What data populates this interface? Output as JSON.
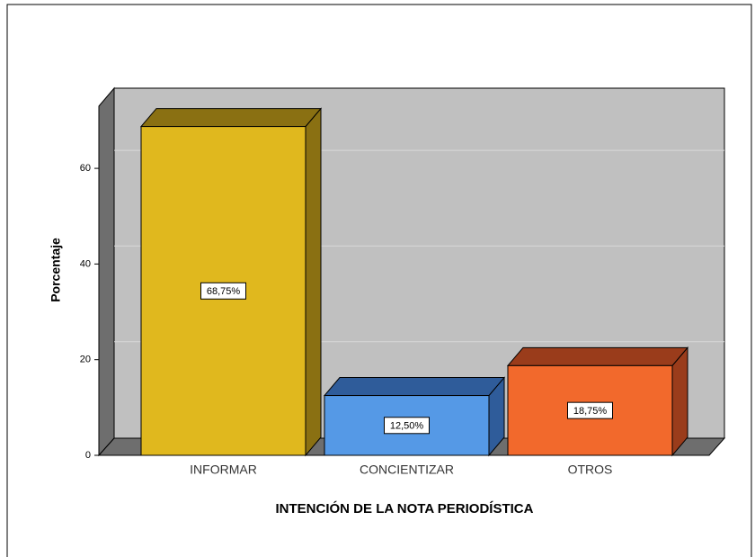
{
  "chart_data": {
    "type": "bar3d",
    "categories": [
      "INFORMAR",
      "CONCIENTIZAR",
      "OTROS"
    ],
    "values": [
      68.75,
      12.5,
      18.75
    ],
    "value_labels": [
      "68,75%",
      "12,50%",
      "18,75%"
    ],
    "colors": [
      "#e0b81e",
      "#5599e6",
      "#f2692c"
    ],
    "shade_colors": [
      "#8a7012",
      "#2f5c9a",
      "#9a3c1b"
    ],
    "x_label": "INTENCIÓN DE LA NOTA PERIODÍSTICA",
    "y_label": "Porcentaje",
    "ylim": [
      0,
      73
    ],
    "yticks": [
      0,
      20,
      40,
      60
    ],
    "grid": true
  }
}
